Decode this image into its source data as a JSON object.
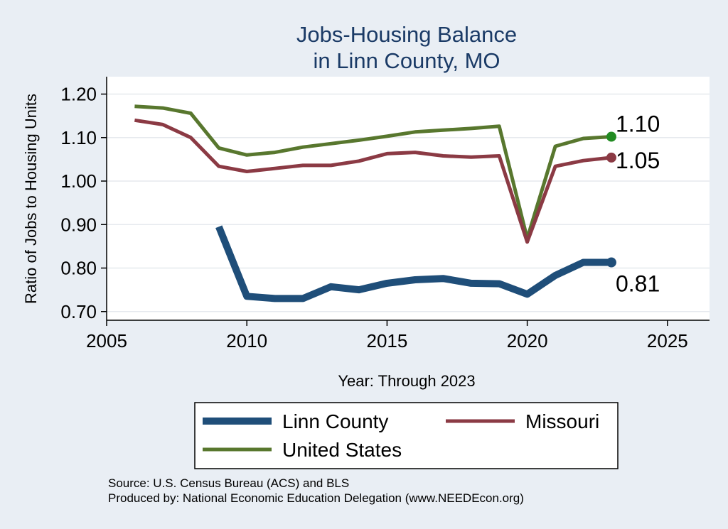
{
  "chart_data": {
    "type": "line",
    "title": [
      "Jobs-Housing Balance",
      "in Linn County, MO"
    ],
    "xlabel": "Year: Through 2023",
    "ylabel": "Ratio of Jobs to Housing Units",
    "xlim": [
      2005,
      2026.5
    ],
    "ylim": [
      0.68,
      1.24
    ],
    "xticks": [
      2005,
      2010,
      2015,
      2020,
      2025
    ],
    "yticks": [
      0.7,
      0.8,
      0.9,
      1.0,
      1.1,
      1.2
    ],
    "ytick_labels": [
      "0.70",
      "0.80",
      "0.90",
      "1.00",
      "1.10",
      "1.20"
    ],
    "grid": true,
    "series": [
      {
        "name": "Linn County",
        "color": "#1f4e79",
        "width": "thick",
        "x": [
          2009,
          2010,
          2011,
          2012,
          2013,
          2014,
          2015,
          2016,
          2017,
          2018,
          2019,
          2020,
          2021,
          2022,
          2023
        ],
        "values": [
          0.895,
          0.735,
          0.73,
          0.73,
          0.757,
          0.75,
          0.765,
          0.773,
          0.776,
          0.765,
          0.764,
          0.74,
          0.783,
          0.813,
          0.813
        ],
        "end_label": "0.81",
        "marker_color": "#1f4e79"
      },
      {
        "name": "Missouri",
        "color": "#8b3a44",
        "width": "normal",
        "x": [
          2006,
          2007,
          2008,
          2009,
          2010,
          2011,
          2012,
          2013,
          2014,
          2015,
          2016,
          2017,
          2018,
          2019,
          2020,
          2021,
          2022,
          2023
        ],
        "values": [
          1.14,
          1.13,
          1.1,
          1.034,
          1.022,
          1.029,
          1.036,
          1.036,
          1.046,
          1.063,
          1.066,
          1.058,
          1.055,
          1.058,
          0.86,
          1.034,
          1.047,
          1.054
        ],
        "end_label": "1.05",
        "marker_color": "#8b3a44"
      },
      {
        "name": "United States",
        "color": "#58772e",
        "width": "normal",
        "x": [
          2006,
          2007,
          2008,
          2009,
          2010,
          2011,
          2012,
          2013,
          2014,
          2015,
          2016,
          2017,
          2018,
          2019,
          2020,
          2021,
          2022,
          2023
        ],
        "values": [
          1.172,
          1.168,
          1.156,
          1.076,
          1.06,
          1.066,
          1.078,
          1.086,
          1.094,
          1.103,
          1.113,
          1.117,
          1.121,
          1.126,
          0.868,
          1.08,
          1.098,
          1.102
        ],
        "end_label": "1.10",
        "marker_color": "#228b22"
      }
    ],
    "legend": {
      "placement": "bottom",
      "entries": [
        "Linn County",
        "Missouri",
        "United States"
      ]
    }
  },
  "footer": {
    "source": "Source: U.S. Census Bureau (ACS) and BLS",
    "produced_by": "Produced by: National Economic Education Delegation (www.NEEDEcon.org)"
  }
}
